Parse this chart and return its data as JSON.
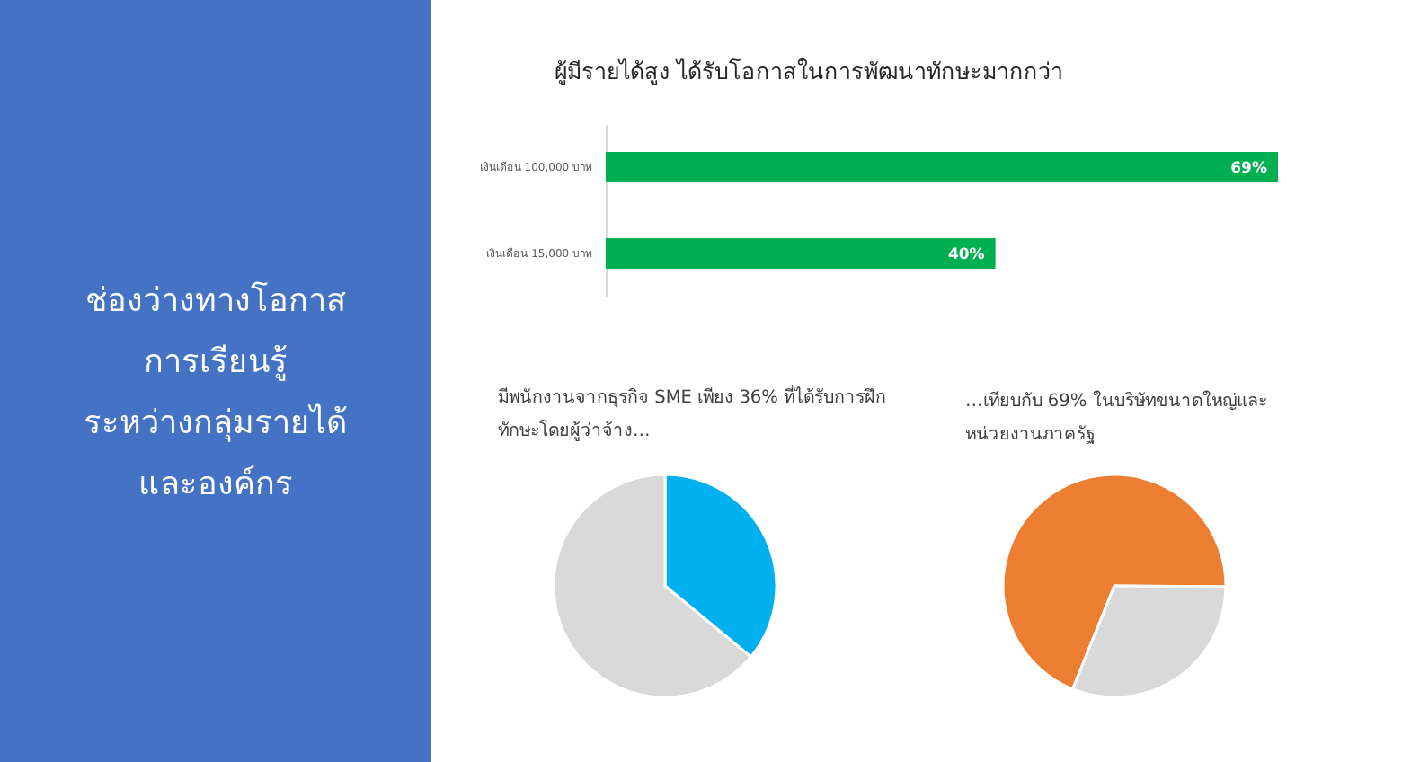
{
  "chart_data": [
    {
      "type": "other",
      "title": "ช่องว่างทางโอกาส\nการเรียนรู้\nระหว่างกลุ่มรายได้\nและองค์กร"
    },
    {
      "type": "bar",
      "orientation": "horizontal",
      "title": "ผู้มีรายได้สูง ได้รับโอกาสในการพัฒนาทักษะมากกว่า",
      "categories": [
        "เงินเดือน 100,000 บาท",
        "เงินเดือน 15,000 บาท"
      ],
      "values": [
        69,
        40
      ],
      "color": "#00b050",
      "value_labels": [
        "69%",
        "40%"
      ],
      "tick_labels": "y"
    },
    {
      "type": "pie",
      "title": "มีพนักงานจากธุรกิจ SME เพียง 36% ที่ได้รับการฝึก\nทักษะโดยผู้ว่าจ้าง…",
      "categories": [
        null,
        null
      ],
      "values": [
        36,
        64
      ],
      "colors": [
        "#00b0f0",
        "#d9d9d9"
      ]
    },
    {
      "type": "pie",
      "title": "…เทียบกับ 69% ในบริษัทขนาดใหญ่และ\nหน่วยงานภาครัฐ",
      "categories": [
        null,
        null
      ],
      "values": [
        69,
        31
      ],
      "colors": [
        "#ed7d31",
        "#d9d9d9"
      ]
    }
  ]
}
